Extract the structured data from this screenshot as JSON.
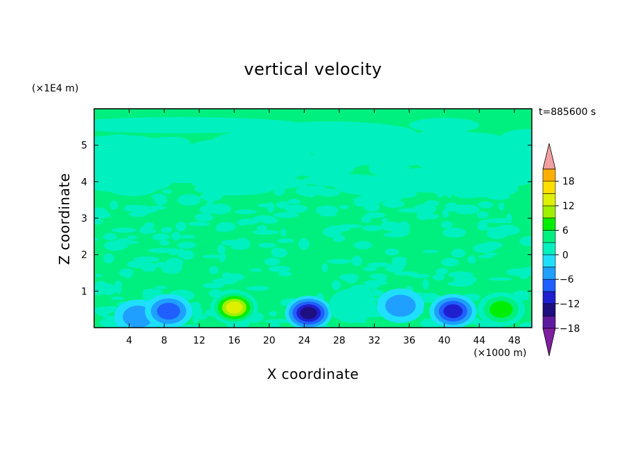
{
  "chart_data": {
    "type": "heatmap",
    "title": "vertical velocity",
    "xlabel": "X coordinate",
    "ylabel": "Z coordinate",
    "x_unit_label": "(×1000 m)",
    "y_unit_label": "(×1E4 m)",
    "time_label": "t=885600 s",
    "xlim": [
      0,
      50
    ],
    "ylim": [
      0,
      6
    ],
    "x_ticks": [
      4,
      8,
      12,
      16,
      20,
      24,
      28,
      32,
      36,
      40,
      44,
      48
    ],
    "y_ticks": [
      1,
      2,
      3,
      4,
      5
    ],
    "colorbar": {
      "ticks": [
        18,
        12,
        6,
        0,
        -6,
        -12,
        -18
      ],
      "range": [
        -21,
        21
      ],
      "step": 3,
      "extend": "both",
      "colors_low_to_high": [
        "#7f1f9f",
        "#5f1b9f",
        "#1d0f7f",
        "#1f1fd0",
        "#1f5fff",
        "#1f9fff",
        "#1fdfff",
        "#00f0c0",
        "#00f080",
        "#00ef00",
        "#9fef00",
        "#dfef00",
        "#ffdf00",
        "#ffaf00",
        "#ff7f00",
        "#ff3f00",
        "#ef0000"
      ],
      "over_color": "#f0a0a0"
    },
    "features": [
      {
        "x": 5,
        "z": 0.3,
        "w": -6
      },
      {
        "x": 8.5,
        "z": 0.45,
        "w": -9
      },
      {
        "x": 16,
        "z": 0.55,
        "w": 14
      },
      {
        "x": 24.5,
        "z": 0.4,
        "w": -15
      },
      {
        "x": 29.5,
        "z": 0.6,
        "w": 3
      },
      {
        "x": 35,
        "z": 0.6,
        "w": -5
      },
      {
        "x": 41,
        "z": 0.45,
        "w": -12
      },
      {
        "x": 46.5,
        "z": 0.5,
        "w": 9
      }
    ]
  }
}
